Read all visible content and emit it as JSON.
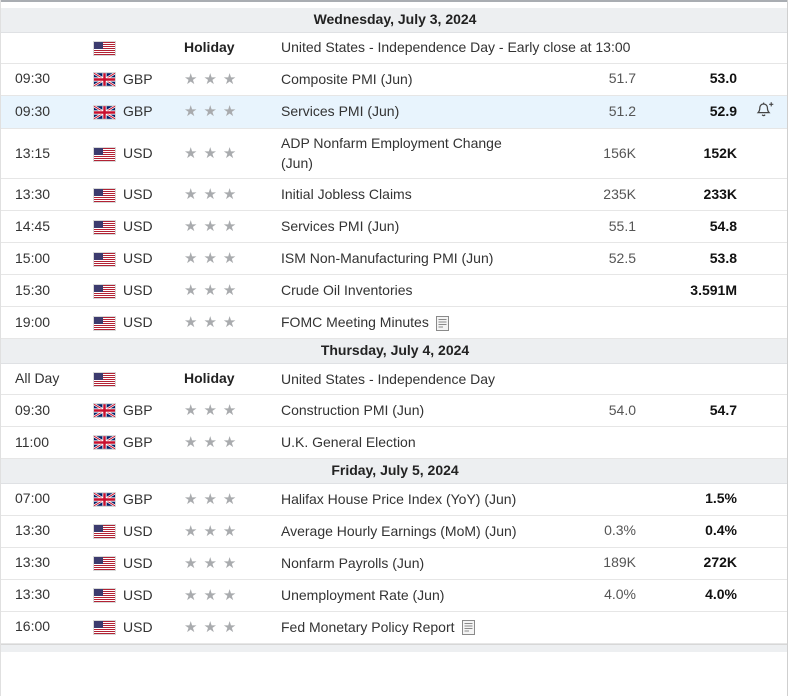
{
  "colors": {
    "header_bg": "#edeff1",
    "row_highlight": "#e8f4fd",
    "border": "#e6e6e6",
    "star": "#a9abae",
    "top_rule": "#a9adb2",
    "previous_text": "#111111",
    "forecast_text": "#555555"
  },
  "icons": {
    "importance": "star-icon",
    "alert": "bell-plus-icon",
    "report": "document-icon",
    "us": "us-flag-icon",
    "gb": "uk-flag-icon"
  },
  "table": {
    "sections": [
      {
        "date": "Wednesday, July 3, 2024",
        "rows": [
          {
            "time": "",
            "country": "us",
            "currency": "",
            "holiday": true,
            "holiday_label": "Holiday",
            "event": "United States - Independence Day - Early close at 13:00"
          },
          {
            "time": "09:30",
            "country": "gb",
            "currency": "GBP",
            "stars": 3,
            "event": "Composite PMI (Jun)",
            "forecast": "51.7",
            "previous": "53.0"
          },
          {
            "time": "09:30",
            "country": "gb",
            "currency": "GBP",
            "stars": 3,
            "event": "Services PMI (Jun)",
            "forecast": "51.2",
            "previous": "52.9",
            "highlighted": true,
            "alert": true
          },
          {
            "time": "13:15",
            "country": "us",
            "currency": "USD",
            "stars": 3,
            "event": "ADP Nonfarm Employment Change (Jun)",
            "forecast": "156K",
            "previous": "152K"
          },
          {
            "time": "13:30",
            "country": "us",
            "currency": "USD",
            "stars": 3,
            "event": "Initial Jobless Claims",
            "forecast": "235K",
            "previous": "233K"
          },
          {
            "time": "14:45",
            "country": "us",
            "currency": "USD",
            "stars": 3,
            "event": "Services PMI (Jun)",
            "forecast": "55.1",
            "previous": "54.8"
          },
          {
            "time": "15:00",
            "country": "us",
            "currency": "USD",
            "stars": 3,
            "event": "ISM Non-Manufacturing PMI (Jun)",
            "forecast": "52.5",
            "previous": "53.8"
          },
          {
            "time": "15:30",
            "country": "us",
            "currency": "USD",
            "stars": 3,
            "event": "Crude Oil Inventories",
            "forecast": "",
            "previous": "3.591M"
          },
          {
            "time": "19:00",
            "country": "us",
            "currency": "USD",
            "stars": 3,
            "event": "FOMC Meeting Minutes",
            "forecast": "",
            "previous": "",
            "report_icon": true
          }
        ]
      },
      {
        "date": "Thursday, July 4, 2024",
        "rows": [
          {
            "time": "All Day",
            "country": "us",
            "currency": "",
            "holiday": true,
            "holiday_label": "Holiday",
            "event": "United States - Independence Day"
          },
          {
            "time": "09:30",
            "country": "gb",
            "currency": "GBP",
            "stars": 3,
            "event": "Construction PMI (Jun)",
            "forecast": "54.0",
            "previous": "54.7"
          },
          {
            "time": "11:00",
            "country": "gb",
            "currency": "GBP",
            "stars": 3,
            "event": "U.K. General Election",
            "forecast": "",
            "previous": ""
          }
        ]
      },
      {
        "date": "Friday, July 5, 2024",
        "rows": [
          {
            "time": "07:00",
            "country": "gb",
            "currency": "GBP",
            "stars": 3,
            "event": "Halifax House Price Index (YoY) (Jun)",
            "forecast": "",
            "previous": "1.5%"
          },
          {
            "time": "13:30",
            "country": "us",
            "currency": "USD",
            "stars": 3,
            "event": "Average Hourly Earnings (MoM) (Jun)",
            "forecast": "0.3%",
            "previous": "0.4%"
          },
          {
            "time": "13:30",
            "country": "us",
            "currency": "USD",
            "stars": 3,
            "event": "Nonfarm Payrolls (Jun)",
            "forecast": "189K",
            "previous": "272K"
          },
          {
            "time": "13:30",
            "country": "us",
            "currency": "USD",
            "stars": 3,
            "event": "Unemployment Rate (Jun)",
            "forecast": "4.0%",
            "previous": "4.0%"
          },
          {
            "time": "16:00",
            "country": "us",
            "currency": "USD",
            "stars": 3,
            "event": "Fed Monetary Policy Report",
            "forecast": "",
            "previous": "",
            "report_icon": true
          }
        ]
      }
    ]
  }
}
